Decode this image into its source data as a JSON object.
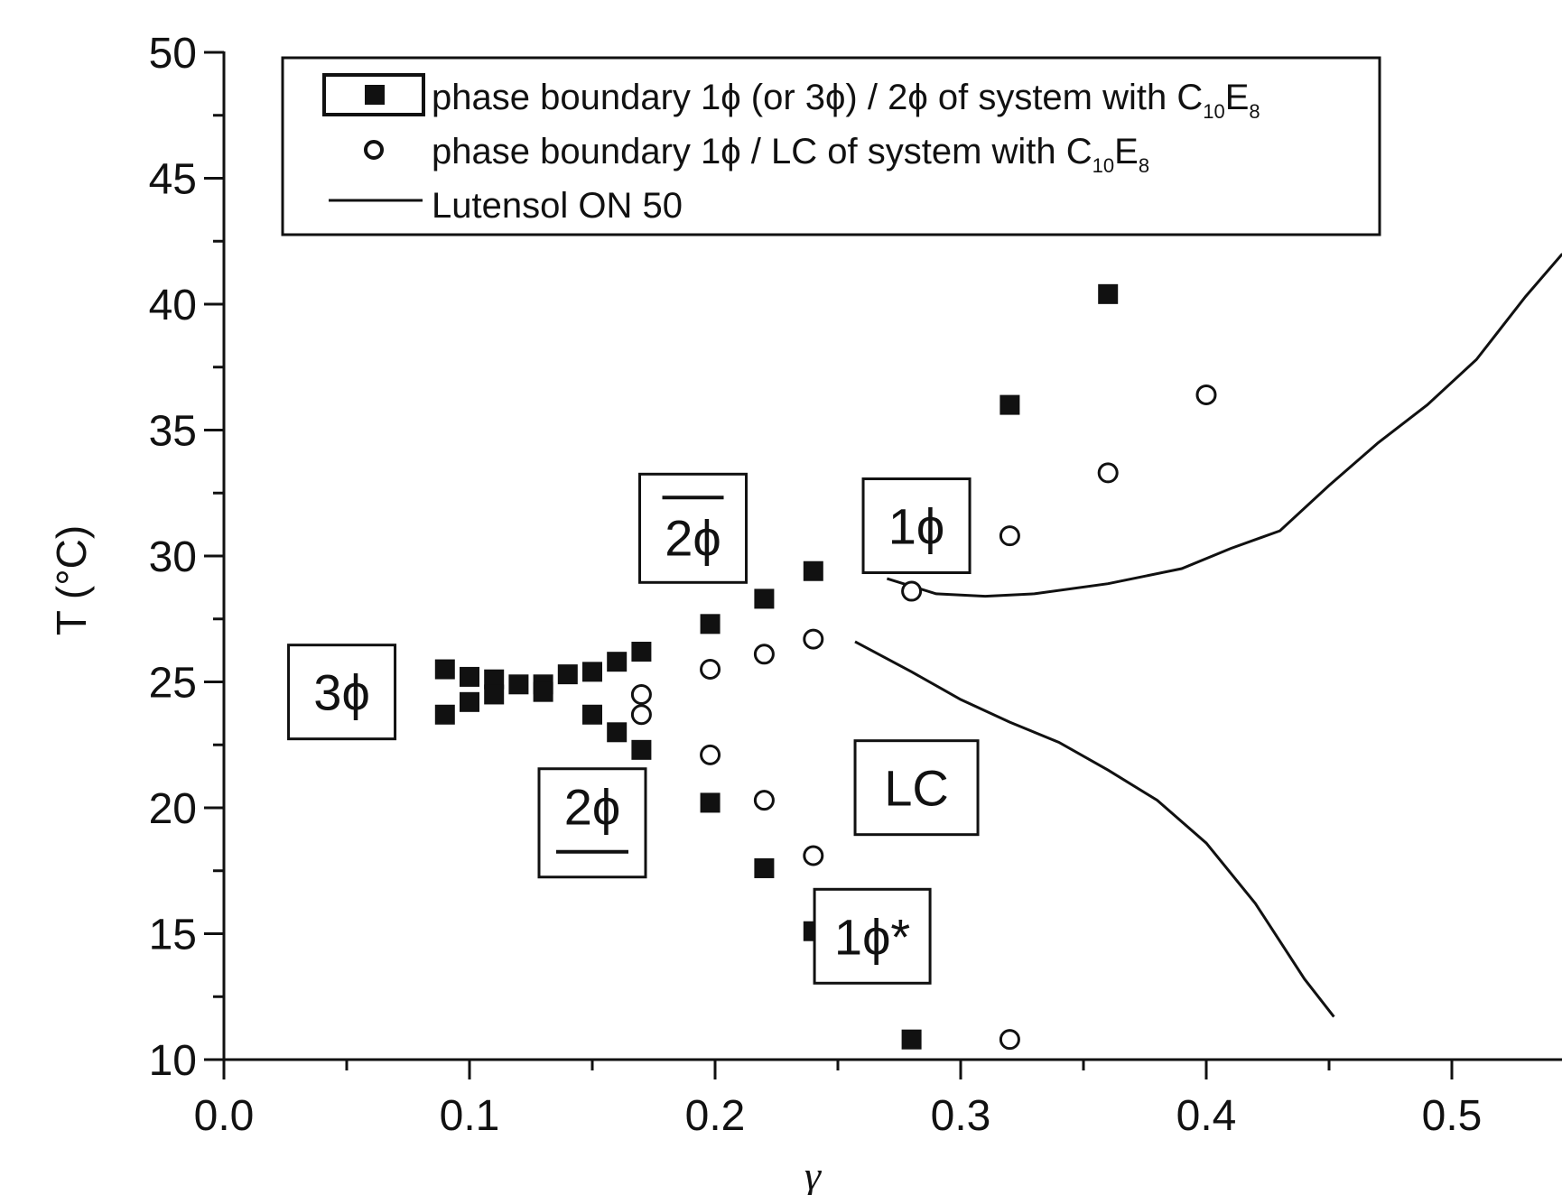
{
  "chart_data": {
    "type": "scatter",
    "title": "",
    "xlabel": "γ",
    "ylabel": "T (°C)",
    "xlim": [
      0.0,
      0.55
    ],
    "ylim": [
      10,
      50
    ],
    "xticks": [
      "0.0",
      "0.1",
      "0.2",
      "0.3",
      "0.4",
      "0.5"
    ],
    "yticks": [
      "10",
      "15",
      "20",
      "25",
      "30",
      "35",
      "40",
      "45",
      "50"
    ],
    "grid": false,
    "legend_position": "top",
    "series": [
      {
        "name": "phase boundary 1ϕ (or 3ϕ) / 2ϕ of system with C10E8",
        "legend_main": "phase boundary 1ϕ (or 3ϕ) / 2ϕ of system with C",
        "legend_subs": [
          "10",
          "E",
          "8"
        ],
        "marker": "filled-square",
        "points": [
          [
            0.09,
            25.5
          ],
          [
            0.09,
            23.7
          ],
          [
            0.1,
            25.2
          ],
          [
            0.1,
            24.2
          ],
          [
            0.11,
            25.1
          ],
          [
            0.11,
            24.5
          ],
          [
            0.12,
            24.9
          ],
          [
            0.13,
            24.9
          ],
          [
            0.13,
            24.6
          ],
          [
            0.14,
            25.3
          ],
          [
            0.15,
            25.4
          ],
          [
            0.15,
            23.7
          ],
          [
            0.16,
            25.8
          ],
          [
            0.16,
            23.0
          ],
          [
            0.17,
            26.2
          ],
          [
            0.17,
            22.3
          ],
          [
            0.198,
            27.3
          ],
          [
            0.198,
            20.2
          ],
          [
            0.22,
            28.3
          ],
          [
            0.22,
            17.6
          ],
          [
            0.24,
            29.4
          ],
          [
            0.24,
            15.1
          ],
          [
            0.28,
            10.8
          ],
          [
            0.32,
            36.0
          ],
          [
            0.36,
            40.4
          ]
        ]
      },
      {
        "name": "phase boundary 1ϕ / LC of system with C10E8",
        "legend_main": "phase boundary 1ϕ / LC of system with C",
        "legend_subs": [
          "10",
          "E",
          "8"
        ],
        "marker": "open-circle",
        "points": [
          [
            0.17,
            24.5
          ],
          [
            0.17,
            23.7
          ],
          [
            0.198,
            25.5
          ],
          [
            0.198,
            22.1
          ],
          [
            0.22,
            26.1
          ],
          [
            0.22,
            20.3
          ],
          [
            0.24,
            26.7
          ],
          [
            0.24,
            18.1
          ],
          [
            0.28,
            28.6
          ],
          [
            0.32,
            30.8
          ],
          [
            0.32,
            10.8
          ],
          [
            0.36,
            33.3
          ],
          [
            0.4,
            36.4
          ]
        ]
      },
      {
        "name": "Lutensol ON 50",
        "legend_main": "Lutensol ON 50",
        "marker": "line",
        "upper_branch": [
          [
            0.27,
            29.1
          ],
          [
            0.29,
            28.5
          ],
          [
            0.31,
            28.4
          ],
          [
            0.33,
            28.5
          ],
          [
            0.36,
            28.9
          ],
          [
            0.39,
            29.5
          ],
          [
            0.41,
            30.3
          ],
          [
            0.43,
            31.0
          ],
          [
            0.45,
            32.8
          ],
          [
            0.47,
            34.5
          ],
          [
            0.49,
            36.0
          ],
          [
            0.51,
            37.8
          ],
          [
            0.53,
            40.3
          ],
          [
            0.545,
            42.0
          ]
        ],
        "lower_branch": [
          [
            0.257,
            26.6
          ],
          [
            0.28,
            25.4
          ],
          [
            0.3,
            24.3
          ],
          [
            0.32,
            23.4
          ],
          [
            0.34,
            22.6
          ],
          [
            0.36,
            21.5
          ],
          [
            0.38,
            20.3
          ],
          [
            0.4,
            18.6
          ],
          [
            0.42,
            16.2
          ],
          [
            0.44,
            13.2
          ],
          [
            0.452,
            11.7
          ]
        ]
      }
    ],
    "annotations": [
      {
        "text": "3ϕ",
        "x": 0.048,
        "y": 24.6
      },
      {
        "text": "2ϕ",
        "x": 0.191,
        "y": 31.1,
        "bar": "over"
      },
      {
        "text": "1ϕ",
        "x": 0.282,
        "y": 31.2
      },
      {
        "text": "2ϕ",
        "x": 0.15,
        "y": 19.4,
        "bar": "under"
      },
      {
        "text": "LC",
        "x": 0.282,
        "y": 20.8
      },
      {
        "text": "1ϕ*",
        "x": 0.264,
        "y": 14.9
      }
    ]
  }
}
